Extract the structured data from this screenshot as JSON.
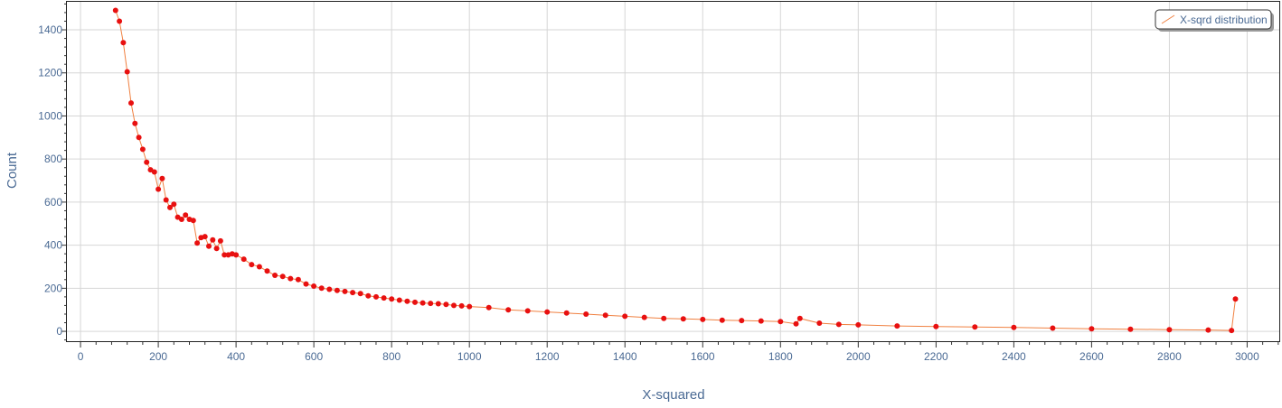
{
  "chart_data": {
    "type": "line",
    "title": "",
    "xlabel": "X-squared",
    "ylabel": "Count",
    "xlim": [
      -35,
      3085
    ],
    "ylim": [
      -50,
      1530
    ],
    "x_ticks": [
      0,
      200,
      400,
      600,
      800,
      1000,
      1200,
      1400,
      1600,
      1800,
      2000,
      2200,
      2400,
      2600,
      2800,
      3000
    ],
    "y_ticks": [
      0,
      200,
      400,
      600,
      800,
      1000,
      1200,
      1400
    ],
    "grid": true,
    "legend_position": "top-right",
    "series": [
      {
        "name": "X-sqrd distribution",
        "line_color": "#f08040",
        "marker_color": "#e81010",
        "x": [
          90,
          100,
          110,
          120,
          130,
          140,
          150,
          160,
          170,
          180,
          190,
          200,
          210,
          220,
          230,
          240,
          250,
          260,
          270,
          280,
          290,
          300,
          310,
          320,
          330,
          340,
          350,
          360,
          370,
          380,
          390,
          400,
          420,
          440,
          460,
          480,
          500,
          520,
          540,
          560,
          580,
          600,
          620,
          640,
          660,
          680,
          700,
          720,
          740,
          760,
          780,
          800,
          820,
          840,
          860,
          880,
          900,
          920,
          940,
          960,
          980,
          1000,
          1050,
          1100,
          1150,
          1200,
          1250,
          1300,
          1350,
          1400,
          1450,
          1500,
          1550,
          1600,
          1650,
          1700,
          1750,
          1800,
          1840,
          1850,
          1900,
          1950,
          2000,
          2100,
          2200,
          2300,
          2400,
          2500,
          2600,
          2700,
          2800,
          2900,
          2960,
          2970
        ],
        "y": [
          1490,
          1440,
          1340,
          1205,
          1060,
          965,
          900,
          845,
          785,
          750,
          740,
          660,
          710,
          610,
          575,
          590,
          530,
          520,
          540,
          520,
          515,
          410,
          435,
          440,
          395,
          425,
          385,
          420,
          355,
          355,
          360,
          355,
          335,
          310,
          300,
          280,
          260,
          255,
          245,
          240,
          220,
          210,
          200,
          195,
          190,
          185,
          180,
          175,
          165,
          160,
          155,
          150,
          145,
          140,
          135,
          132,
          130,
          128,
          125,
          120,
          118,
          115,
          110,
          100,
          95,
          90,
          85,
          80,
          75,
          70,
          65,
          60,
          58,
          55,
          52,
          50,
          48,
          45,
          35,
          60,
          38,
          32,
          30,
          25,
          22,
          20,
          18,
          15,
          12,
          10,
          8,
          6,
          4,
          150
        ]
      }
    ]
  }
}
